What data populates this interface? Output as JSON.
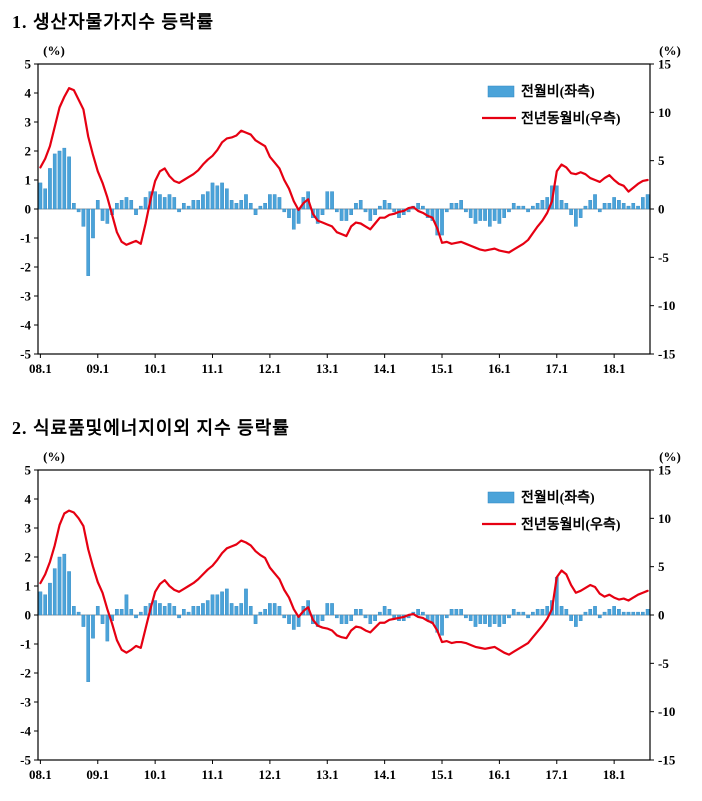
{
  "charts": [
    {
      "title": "1. 생산자물가지수 등락률",
      "left_unit": "(%)",
      "right_unit": "(%)",
      "legend": [
        {
          "label": "전월비(좌측)",
          "type": "bar",
          "color": "#4BA3D9"
        },
        {
          "label": "전년동월비(우측)",
          "type": "line",
          "color": "#E60012"
        }
      ],
      "chart_data": {
        "type": "bar+line",
        "x_start": "2008.01",
        "x_tick_labels": [
          "08.1",
          "09.1",
          "10.1",
          "11.1",
          "12.1",
          "13.1",
          "14.1",
          "15.1",
          "16.1",
          "17.1",
          "18.1"
        ],
        "x_tick_indices": [
          0,
          12,
          24,
          36,
          48,
          60,
          72,
          84,
          96,
          108,
          120
        ],
        "left_ylim": [
          -5,
          5
        ],
        "left_yticks": [
          5,
          4,
          3,
          2,
          1,
          0,
          -1,
          -2,
          -3,
          -4,
          -5
        ],
        "right_ylim": [
          -15,
          15
        ],
        "right_yticks": [
          15,
          10,
          5,
          0,
          -5,
          -10,
          -15
        ],
        "bar_color": "#4BA3D9",
        "bar_edge_color": "#2E86C1",
        "line_color": "#E60012",
        "zero_line_color": "#999999",
        "legend_position": "top-right",
        "grid": false,
        "series": [
          {
            "name": "전월비(좌측)",
            "axis": "left",
            "type": "bar",
            "values": [
              0.9,
              0.7,
              1.4,
              1.9,
              2.0,
              2.1,
              1.8,
              0.2,
              -0.1,
              -0.6,
              -2.3,
              -1.0,
              0.3,
              -0.4,
              -0.5,
              -0.2,
              0.2,
              0.3,
              0.4,
              0.3,
              -0.2,
              0.1,
              0.4,
              0.6,
              0.6,
              0.5,
              0.4,
              0.5,
              0.4,
              -0.1,
              0.2,
              0.1,
              0.3,
              0.3,
              0.5,
              0.6,
              0.9,
              0.8,
              0.9,
              0.7,
              0.3,
              0.2,
              0.3,
              0.5,
              0.2,
              -0.2,
              0.1,
              0.2,
              0.5,
              0.5,
              0.4,
              -0.1,
              -0.3,
              -0.7,
              -0.5,
              0.4,
              0.6,
              -0.3,
              -0.5,
              -0.2,
              0.6,
              0.6,
              -0.1,
              -0.4,
              -0.4,
              -0.2,
              0.2,
              0.3,
              -0.1,
              -0.4,
              -0.2,
              0.1,
              0.3,
              0.2,
              -0.1,
              -0.3,
              -0.2,
              -0.1,
              0.1,
              0.2,
              0.1,
              -0.3,
              -0.4,
              -0.9,
              -0.9,
              -0.1,
              0.2,
              0.2,
              0.3,
              -0.1,
              -0.3,
              -0.5,
              -0.4,
              -0.4,
              -0.6,
              -0.4,
              -0.5,
              -0.3,
              -0.1,
              0.2,
              0.1,
              0.1,
              -0.1,
              0.1,
              0.2,
              0.3,
              0.4,
              0.8,
              0.8,
              0.3,
              0.2,
              -0.2,
              -0.6,
              -0.3,
              0.1,
              0.3,
              0.5,
              -0.1,
              0.2,
              0.2,
              0.4,
              0.3,
              0.2,
              0.1,
              0.2,
              0.1,
              0.4,
              0.5
            ]
          },
          {
            "name": "전년동월비(우측)",
            "axis": "right",
            "type": "line",
            "values": [
              4.3,
              5.2,
              6.5,
              8.5,
              10.5,
              11.6,
              12.5,
              12.3,
              11.3,
              10.3,
              7.5,
              5.6,
              3.9,
              2.7,
              1.2,
              -0.6,
              -2.4,
              -3.4,
              -3.7,
              -3.5,
              -3.3,
              -3.6,
              -1.5,
              0.9,
              2.9,
              3.9,
              4.2,
              3.4,
              2.9,
              2.7,
              3.0,
              3.3,
              3.6,
              4.0,
              4.6,
              5.1,
              5.5,
              6.1,
              6.9,
              7.3,
              7.4,
              7.6,
              8.1,
              7.9,
              7.7,
              7.1,
              6.8,
              6.5,
              5.4,
              4.8,
              4.2,
              3.0,
              2.1,
              0.8,
              -0.1,
              0.6,
              1.0,
              -0.5,
              -1.2,
              -1.4,
              -1.6,
              -1.8,
              -2.4,
              -2.6,
              -2.8,
              -1.8,
              -1.4,
              -1.5,
              -1.8,
              -2.1,
              -1.5,
              -0.9,
              -0.9,
              -0.6,
              -0.5,
              -0.3,
              -0.2,
              0.1,
              0.2,
              -0.2,
              -0.4,
              -0.7,
              -0.9,
              -2.0,
              -3.5,
              -3.4,
              -3.6,
              -3.5,
              -3.4,
              -3.6,
              -3.8,
              -4.0,
              -4.2,
              -4.3,
              -4.2,
              -4.1,
              -4.3,
              -4.4,
              -4.5,
              -4.2,
              -3.9,
              -3.6,
              -3.2,
              -2.5,
              -1.8,
              -1.2,
              -0.4,
              0.8,
              3.9,
              4.6,
              4.3,
              3.7,
              3.6,
              3.8,
              3.6,
              3.2,
              3.0,
              2.8,
              3.2,
              3.5,
              3.0,
              2.6,
              2.4,
              1.8,
              2.2,
              2.6,
              2.9,
              3.0
            ]
          }
        ]
      }
    },
    {
      "title": "2. 식료품및에너지이외  지수 등락률",
      "left_unit": "(%)",
      "right_unit": "(%)",
      "legend": [
        {
          "label": "전월비(좌측)",
          "type": "bar",
          "color": "#4BA3D9"
        },
        {
          "label": "전년동월비(우측)",
          "type": "line",
          "color": "#E60012"
        }
      ],
      "chart_data": {
        "type": "bar+line",
        "x_start": "2008.01",
        "x_tick_labels": [
          "08.1",
          "09.1",
          "10.1",
          "11.1",
          "12.1",
          "13.1",
          "14.1",
          "15.1",
          "16.1",
          "17.1",
          "18.1"
        ],
        "x_tick_indices": [
          0,
          12,
          24,
          36,
          48,
          60,
          72,
          84,
          96,
          108,
          120
        ],
        "left_ylim": [
          -5,
          5
        ],
        "left_yticks": [
          5,
          4,
          3,
          2,
          1,
          0,
          -1,
          -2,
          -3,
          -4,
          -5
        ],
        "right_ylim": [
          -15,
          15
        ],
        "right_yticks": [
          15,
          10,
          5,
          0,
          -5,
          -10,
          -15
        ],
        "bar_color": "#4BA3D9",
        "bar_edge_color": "#2E86C1",
        "line_color": "#E60012",
        "zero_line_color": "#999999",
        "legend_position": "top-right",
        "grid": false,
        "series": [
          {
            "name": "전월비(좌측)",
            "axis": "left",
            "type": "bar",
            "values": [
              0.8,
              0.7,
              1.1,
              1.6,
              2.0,
              2.1,
              1.5,
              0.3,
              0.1,
              -0.4,
              -2.3,
              -0.8,
              0.3,
              -0.3,
              -0.9,
              -0.2,
              0.2,
              0.2,
              0.7,
              0.2,
              -0.1,
              0.1,
              0.3,
              0.4,
              0.5,
              0.4,
              0.3,
              0.4,
              0.3,
              -0.1,
              0.2,
              0.1,
              0.3,
              0.3,
              0.4,
              0.5,
              0.7,
              0.7,
              0.8,
              0.9,
              0.4,
              0.3,
              0.4,
              0.9,
              0.3,
              -0.3,
              0.1,
              0.2,
              0.4,
              0.4,
              0.3,
              -0.1,
              -0.3,
              -0.5,
              -0.4,
              0.3,
              0.5,
              -0.3,
              -0.4,
              -0.2,
              0.4,
              0.4,
              -0.1,
              -0.3,
              -0.3,
              -0.2,
              0.2,
              0.2,
              -0.1,
              -0.3,
              -0.2,
              0.1,
              0.3,
              0.2,
              -0.1,
              -0.2,
              -0.2,
              -0.1,
              0.1,
              0.2,
              0.1,
              -0.2,
              -0.3,
              -0.6,
              -0.7,
              -0.1,
              0.2,
              0.2,
              0.2,
              -0.1,
              -0.2,
              -0.4,
              -0.3,
              -0.3,
              -0.4,
              -0.3,
              -0.4,
              -0.3,
              -0.1,
              0.2,
              0.1,
              0.1,
              -0.1,
              0.1,
              0.2,
              0.2,
              0.3,
              0.5,
              1.3,
              0.3,
              0.2,
              -0.2,
              -0.4,
              -0.2,
              0.1,
              0.2,
              0.3,
              -0.1,
              0.1,
              0.2,
              0.3,
              0.2,
              0.1,
              0.1,
              0.1,
              0.1,
              0.1,
              0.2
            ]
          },
          {
            "name": "전년동월비(우측)",
            "axis": "right",
            "type": "line",
            "values": [
              3.3,
              4.2,
              5.5,
              7.2,
              9.3,
              10.5,
              10.8,
              10.6,
              10.0,
              9.2,
              6.8,
              5.0,
              3.4,
              2.3,
              0.6,
              -0.9,
              -2.6,
              -3.6,
              -3.9,
              -3.6,
              -3.2,
              -3.4,
              -1.4,
              0.6,
              2.4,
              3.2,
              3.6,
              3.0,
              2.6,
              2.4,
              2.7,
              3.0,
              3.3,
              3.7,
              4.2,
              4.7,
              5.1,
              5.7,
              6.4,
              6.9,
              7.1,
              7.3,
              7.7,
              7.5,
              7.2,
              6.6,
              6.2,
              5.9,
              4.9,
              4.3,
              3.7,
              2.6,
              1.8,
              0.6,
              -0.2,
              0.4,
              0.8,
              -0.5,
              -1.1,
              -1.3,
              -1.4,
              -1.6,
              -2.1,
              -2.3,
              -2.4,
              -1.6,
              -1.2,
              -1.3,
              -1.6,
              -1.8,
              -1.3,
              -0.8,
              -0.8,
              -0.5,
              -0.4,
              -0.3,
              -0.2,
              0.0,
              0.1,
              -0.2,
              -0.3,
              -0.6,
              -0.8,
              -1.6,
              -2.8,
              -2.7,
              -2.9,
              -2.8,
              -2.8,
              -2.9,
              -3.1,
              -3.3,
              -3.4,
              -3.5,
              -3.4,
              -3.3,
              -3.6,
              -3.9,
              -4.1,
              -3.8,
              -3.5,
              -3.2,
              -2.9,
              -2.3,
              -1.7,
              -1.1,
              -0.4,
              0.6,
              3.9,
              4.6,
              4.2,
              3.1,
              2.3,
              2.5,
              2.8,
              3.1,
              2.9,
              2.2,
              1.9,
              2.1,
              1.8,
              1.6,
              1.7,
              1.5,
              1.8,
              2.1,
              2.3,
              2.5
            ]
          }
        ]
      }
    }
  ]
}
